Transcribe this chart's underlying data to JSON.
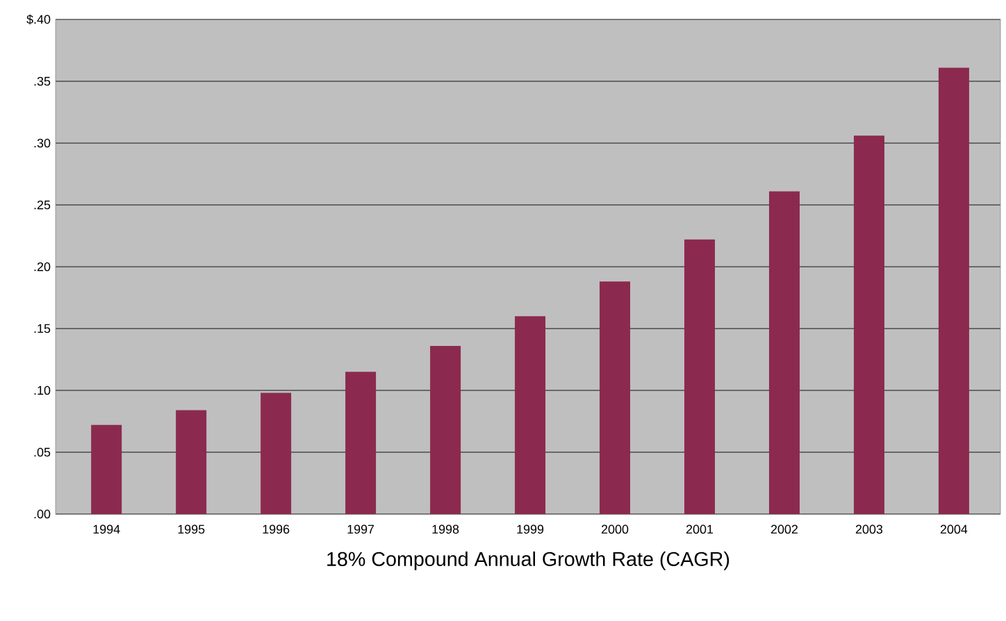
{
  "chart_data": {
    "type": "bar",
    "xlabel": "18% Compound Annual Growth Rate (CAGR)",
    "categories": [
      "1994",
      "1995",
      "1996",
      "1997",
      "1998",
      "1999",
      "2000",
      "2001",
      "2002",
      "2003",
      "2004"
    ],
    "values": [
      0.072,
      0.084,
      0.098,
      0.115,
      0.136,
      0.16,
      0.188,
      0.222,
      0.261,
      0.306,
      0.361
    ],
    "color": "#8b2a4e",
    "ylim": [
      0,
      0.4
    ],
    "yticks": [
      {
        "value": 0,
        "label": ".00"
      },
      {
        "value": 0.05,
        "label": ".05"
      },
      {
        "value": 0.1,
        "label": ".10"
      },
      {
        "value": 0.15,
        "label": ".15"
      },
      {
        "value": 0.2,
        "label": ".20"
      },
      {
        "value": 0.25,
        "label": ".25"
      },
      {
        "value": 0.3,
        "label": ".30"
      },
      {
        "value": 0.35,
        "label": ".35"
      },
      {
        "value": 0.4,
        "label": "$.40"
      }
    ],
    "grid": "y"
  }
}
